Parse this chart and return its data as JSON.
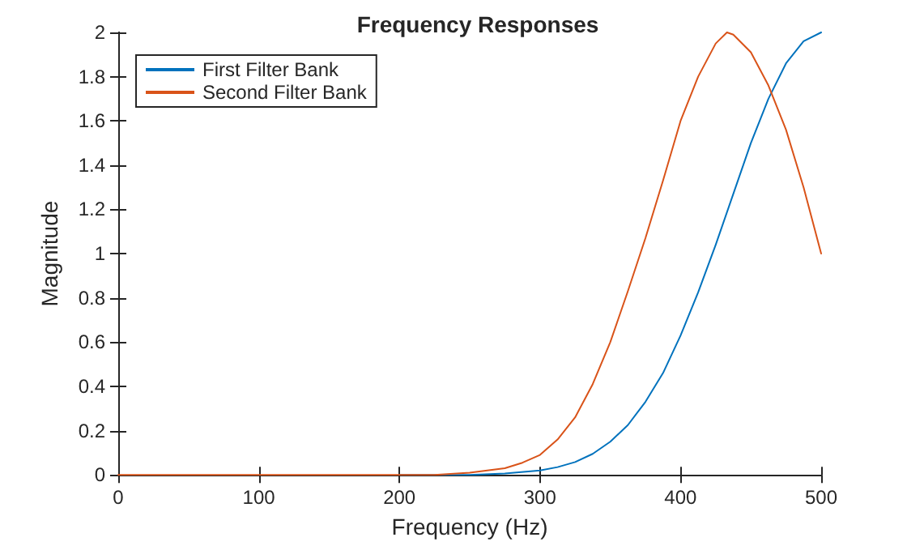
{
  "chart_data": {
    "type": "line",
    "title": "Frequency Responses",
    "xlabel": "Frequency (Hz)",
    "ylabel": "Magnitude",
    "xlim": [
      0,
      500
    ],
    "xticks": [
      0,
      100,
      200,
      300,
      400,
      500
    ],
    "ylim": [
      0,
      2
    ],
    "yticks": [
      0,
      0.2,
      0.4,
      0.6,
      0.8,
      1,
      1.2,
      1.4,
      1.6,
      1.8,
      2
    ],
    "grid": false,
    "legend": "top left",
    "marker": "none",
    "line_style": "solid",
    "series": [
      {
        "name": "First Filter Bank",
        "color": "#0072bd",
        "x": [
          200,
          225,
          250,
          275,
          300,
          312.5,
          325,
          337.5,
          350,
          362.5,
          375,
          387.5,
          400,
          412.5,
          425,
          437.5,
          450,
          462.5,
          475,
          487.5,
          500
        ],
        "values": [
          0,
          0,
          0,
          0.006,
          0.02,
          0.035,
          0.058,
          0.095,
          0.15,
          0.225,
          0.33,
          0.46,
          0.63,
          0.825,
          1.04,
          1.27,
          1.5,
          1.7,
          1.86,
          1.96,
          2
        ]
      },
      {
        "name": "Second Filter Bank",
        "color": "#d95319",
        "x": [
          0,
          25,
          50,
          75,
          100,
          125,
          150,
          175,
          200,
          225,
          250,
          275,
          287.5,
          300,
          312.5,
          325,
          337.5,
          350,
          362.5,
          375,
          387.5,
          400,
          412.5,
          425,
          433,
          437.5,
          450,
          462.5,
          475,
          487.5,
          500
        ],
        "values": [
          0,
          0,
          0,
          0,
          0,
          0,
          0,
          0,
          0,
          0,
          0.01,
          0.03,
          0.055,
          0.09,
          0.16,
          0.26,
          0.41,
          0.6,
          0.83,
          1.07,
          1.33,
          1.6,
          1.8,
          1.95,
          2,
          1.99,
          1.91,
          1.76,
          1.56,
          1.3,
          1
        ]
      }
    ]
  }
}
